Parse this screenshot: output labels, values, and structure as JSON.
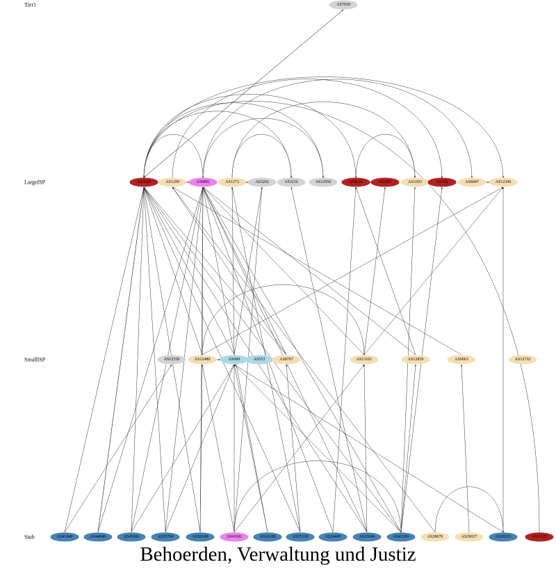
{
  "tiers": [
    {
      "label": "Tier1",
      "nodes": [
        {
          "label": "AS7018",
          "color": "#d3d3d3"
        }
      ]
    },
    {
      "label": "LargeISP",
      "nodes": [
        {
          "label": "AS3320",
          "color": "#b22222"
        },
        {
          "label": "AS1299",
          "color": "#f5deb3"
        },
        {
          "label": "AS8881",
          "color": "#ee82ee"
        },
        {
          "label": "AS1273",
          "color": "#f5deb3"
        },
        {
          "label": "AS3292",
          "color": "#d3d3d3"
        },
        {
          "label": "AS3216",
          "color": "#d3d3d3"
        },
        {
          "label": "AS12956",
          "color": "#d3d3d3"
        },
        {
          "label": "AS8220",
          "color": "#b22222"
        },
        {
          "label": "AS3257",
          "color": "#b22222"
        },
        {
          "label": "AS3303",
          "color": "#f5deb3"
        },
        {
          "label": "AS702",
          "color": "#b22222"
        },
        {
          "label": "AS8447",
          "color": "#f5deb3"
        },
        {
          "label": "AS12306",
          "color": "#f5deb3"
        }
      ]
    },
    {
      "label": "SmallISP",
      "nodes": [
        {
          "label": "AS12350",
          "color": "#d3d3d3"
        },
        {
          "label": "AS12480",
          "color": "#f5deb3"
        },
        {
          "label": "AS680",
          "color": "#add8e6"
        },
        {
          "label": "AS553",
          "color": "#add8e6"
        },
        {
          "label": "AS8767",
          "color": "#f5deb3"
        },
        {
          "label": "AS13101",
          "color": "#f5deb3"
        },
        {
          "label": "AS12859",
          "color": "#f5deb3"
        },
        {
          "label": "AS9063",
          "color": "#f5deb3"
        },
        {
          "label": "AS12732",
          "color": "#f5deb3"
        }
      ]
    },
    {
      "label": "Stub",
      "nodes": [
        {
          "label": "AS41040",
          "color": "#4682b4"
        },
        {
          "label": "AS44049",
          "color": "#4682b4"
        },
        {
          "label": "AS43066",
          "color": "#4682b4"
        },
        {
          "label": "AS35704",
          "color": "#4682b4"
        },
        {
          "label": "AS50100",
          "color": "#4682b4"
        },
        {
          "label": "AS41692",
          "color": "#ee82ee"
        },
        {
          "label": "AS16108",
          "color": "#4682b4"
        },
        {
          "label": "AS15128",
          "color": "#4682b4"
        },
        {
          "label": "AS24445",
          "color": "#4682b4"
        },
        {
          "label": "AS33646",
          "color": "#4682b4"
        },
        {
          "label": "AS41289",
          "color": "#4682b4"
        },
        {
          "label": "AS28676",
          "color": "#f5deb3"
        },
        {
          "label": "AS29037",
          "color": "#f5deb3"
        },
        {
          "label": "AS29315",
          "color": "#4682b4"
        },
        {
          "label": "AS51125",
          "color": "#b22222"
        }
      ]
    }
  ],
  "caption": "Behoerden, Verwaltung und Justiz"
}
